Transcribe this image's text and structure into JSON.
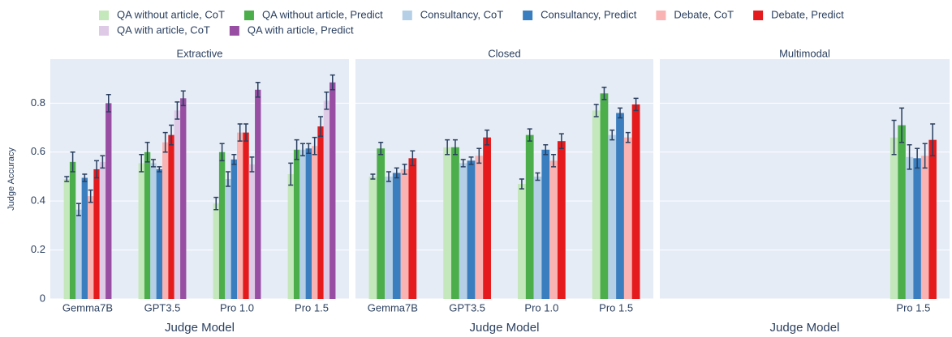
{
  "chart_data": [
    {
      "type": "bar",
      "title": "Extractive",
      "x_label": "Judge Model",
      "y_label": "Judge Accuracy",
      "categories": [
        "Gemma7B",
        "GPT3.5",
        "Pro 1.0",
        "Pro 1.5"
      ],
      "ylim": [
        0,
        0.98
      ],
      "yticks": [
        0,
        0.2,
        0.4,
        0.6,
        0.8
      ],
      "grid": true,
      "series": [
        {
          "name": "QA without article, CoT",
          "color": "#c4e8bb",
          "values": [
            0.49,
            0.555,
            0.39,
            0.51
          ],
          "errors": [
            0.01,
            0.035,
            0.025,
            0.045
          ]
        },
        {
          "name": "QA without article, Predict",
          "color": "#4cae4a",
          "values": [
            0.56,
            0.6,
            0.6,
            0.61
          ],
          "errors": [
            0.04,
            0.04,
            0.035,
            0.04
          ]
        },
        {
          "name": "Consultancy, CoT",
          "color": "#b5cfe6",
          "values": [
            0.365,
            0.555,
            0.49,
            0.61
          ],
          "errors": [
            0.025,
            0.015,
            0.03,
            0.025
          ]
        },
        {
          "name": "Consultancy, Predict",
          "color": "#3a7ebf",
          "values": [
            0.495,
            0.53,
            0.57,
            0.615
          ],
          "errors": [
            0.015,
            0.01,
            0.02,
            0.02
          ]
        },
        {
          "name": "Debate, CoT",
          "color": "#f8b3b2",
          "values": [
            0.42,
            0.64,
            0.68,
            0.625
          ],
          "errors": [
            0.025,
            0.04,
            0.035,
            0.035
          ]
        },
        {
          "name": "Debate, Predict",
          "color": "#e41a1c",
          "values": [
            0.53,
            0.67,
            0.68,
            0.705
          ],
          "errors": [
            0.035,
            0.04,
            0.035,
            0.04
          ]
        },
        {
          "name": "QA with article, CoT",
          "color": "#dec9e6",
          "values": [
            0.56,
            0.77,
            0.55,
            0.81
          ],
          "errors": [
            0.025,
            0.035,
            0.03,
            0.035
          ]
        },
        {
          "name": "QA with article, Predict",
          "color": "#984ea3",
          "values": [
            0.8,
            0.82,
            0.855,
            0.885
          ],
          "errors": [
            0.035,
            0.03,
            0.03,
            0.03
          ]
        }
      ]
    },
    {
      "type": "bar",
      "title": "Closed",
      "x_label": "Judge Model",
      "categories": [
        "Gemma7B",
        "GPT3.5",
        "Pro 1.0",
        "Pro 1.5"
      ],
      "ylim": [
        0,
        0.98
      ],
      "yticks": [
        0,
        0.2,
        0.4,
        0.6,
        0.8
      ],
      "grid": true,
      "series": [
        {
          "color": "#c4e8bb",
          "values": [
            0.5,
            0.62,
            0.47,
            0.77
          ],
          "errors": [
            0.01,
            0.03,
            0.02,
            0.025
          ]
        },
        {
          "color": "#4cae4a",
          "values": [
            0.615,
            0.62,
            0.67,
            0.84
          ],
          "errors": [
            0.025,
            0.03,
            0.025,
            0.025
          ]
        },
        {
          "color": "#b5cfe6",
          "values": [
            0.5,
            0.555,
            0.5,
            0.67
          ],
          "errors": [
            0.02,
            0.015,
            0.015,
            0.02
          ]
        },
        {
          "color": "#3a7ebf",
          "values": [
            0.515,
            0.565,
            0.61,
            0.76
          ],
          "errors": [
            0.02,
            0.015,
            0.02,
            0.02
          ]
        },
        {
          "color": "#f8b3b2",
          "values": [
            0.53,
            0.585,
            0.565,
            0.66
          ],
          "errors": [
            0.02,
            0.03,
            0.025,
            0.02
          ]
        },
        {
          "color": "#e41a1c",
          "values": [
            0.575,
            0.66,
            0.645,
            0.795
          ],
          "errors": [
            0.03,
            0.03,
            0.03,
            0.025
          ]
        }
      ]
    },
    {
      "type": "bar",
      "title": "Multimodal",
      "x_label": "Judge Model",
      "categories": [
        null,
        null,
        null,
        "Pro 1.5"
      ],
      "ylim": [
        0,
        0.98
      ],
      "yticks": [
        0,
        0.2,
        0.4,
        0.6,
        0.8
      ],
      "grid": true,
      "series": [
        {
          "color": "#c4e8bb",
          "values": [
            null,
            null,
            null,
            0.66
          ],
          "errors": [
            null,
            null,
            null,
            0.07
          ]
        },
        {
          "color": "#4cae4a",
          "values": [
            null,
            null,
            null,
            0.71
          ],
          "errors": [
            null,
            null,
            null,
            0.07
          ]
        },
        {
          "color": "#b5cfe6",
          "values": [
            null,
            null,
            null,
            0.58
          ],
          "errors": [
            null,
            null,
            null,
            0.05
          ]
        },
        {
          "color": "#3a7ebf",
          "values": [
            null,
            null,
            null,
            0.575
          ],
          "errors": [
            null,
            null,
            null,
            0.04
          ]
        },
        {
          "color": "#f8b3b2",
          "values": [
            null,
            null,
            null,
            0.585
          ],
          "errors": [
            null,
            null,
            null,
            0.05
          ]
        },
        {
          "color": "#e41a1c",
          "values": [
            null,
            null,
            null,
            0.65
          ],
          "errors": [
            null,
            null,
            null,
            0.065
          ]
        }
      ]
    }
  ]
}
